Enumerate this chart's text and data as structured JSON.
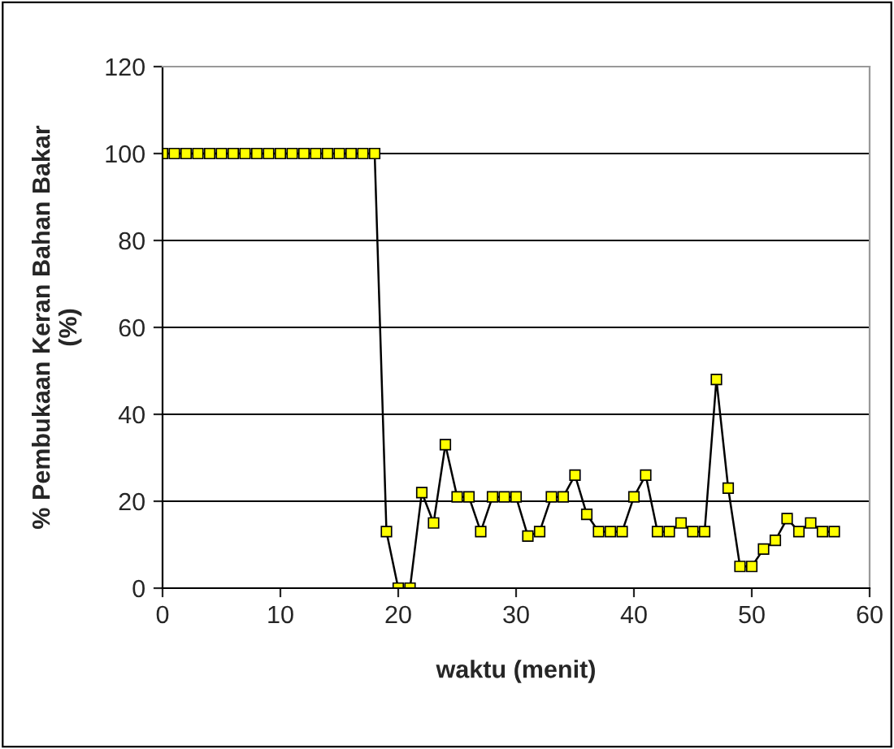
{
  "chart_data": {
    "type": "line",
    "xlabel": "waktu (menit)",
    "ylabel": "% Pembukaan Keran Bahan Bakar\n(%)",
    "x": [
      0,
      1,
      2,
      3,
      4,
      5,
      6,
      7,
      8,
      9,
      10,
      11,
      12,
      13,
      14,
      15,
      16,
      17,
      18,
      19,
      20,
      21,
      22,
      23,
      24,
      25,
      26,
      27,
      28,
      29,
      30,
      31,
      32,
      33,
      34,
      35,
      36,
      37,
      38,
      39,
      40,
      41,
      42,
      43,
      44,
      45,
      46,
      47,
      48,
      49,
      50,
      51,
      52,
      53,
      54,
      55,
      56,
      57
    ],
    "series": [
      {
        "color": "#ffff00",
        "values": [
          100,
          100,
          100,
          100,
          100,
          100,
          100,
          100,
          100,
          100,
          100,
          100,
          100,
          100,
          100,
          100,
          100,
          100,
          100,
          13,
          0,
          0,
          22,
          15,
          33,
          21,
          21,
          13,
          21,
          21,
          21,
          12,
          13,
          21,
          21,
          26,
          17,
          13,
          13,
          13,
          21,
          26,
          13,
          13,
          15,
          13,
          13,
          48,
          23,
          5,
          5,
          9,
          11,
          16,
          13,
          15,
          13,
          13
        ]
      }
    ],
    "xlim": [
      0,
      60
    ],
    "xticks": [
      0,
      10,
      20,
      30,
      40,
      50,
      60
    ],
    "ylim": [
      0,
      120
    ],
    "yticks": [
      0,
      20,
      40,
      60,
      80,
      100,
      120
    ],
    "grid": "y",
    "marker": "square",
    "line_style": "solid"
  }
}
